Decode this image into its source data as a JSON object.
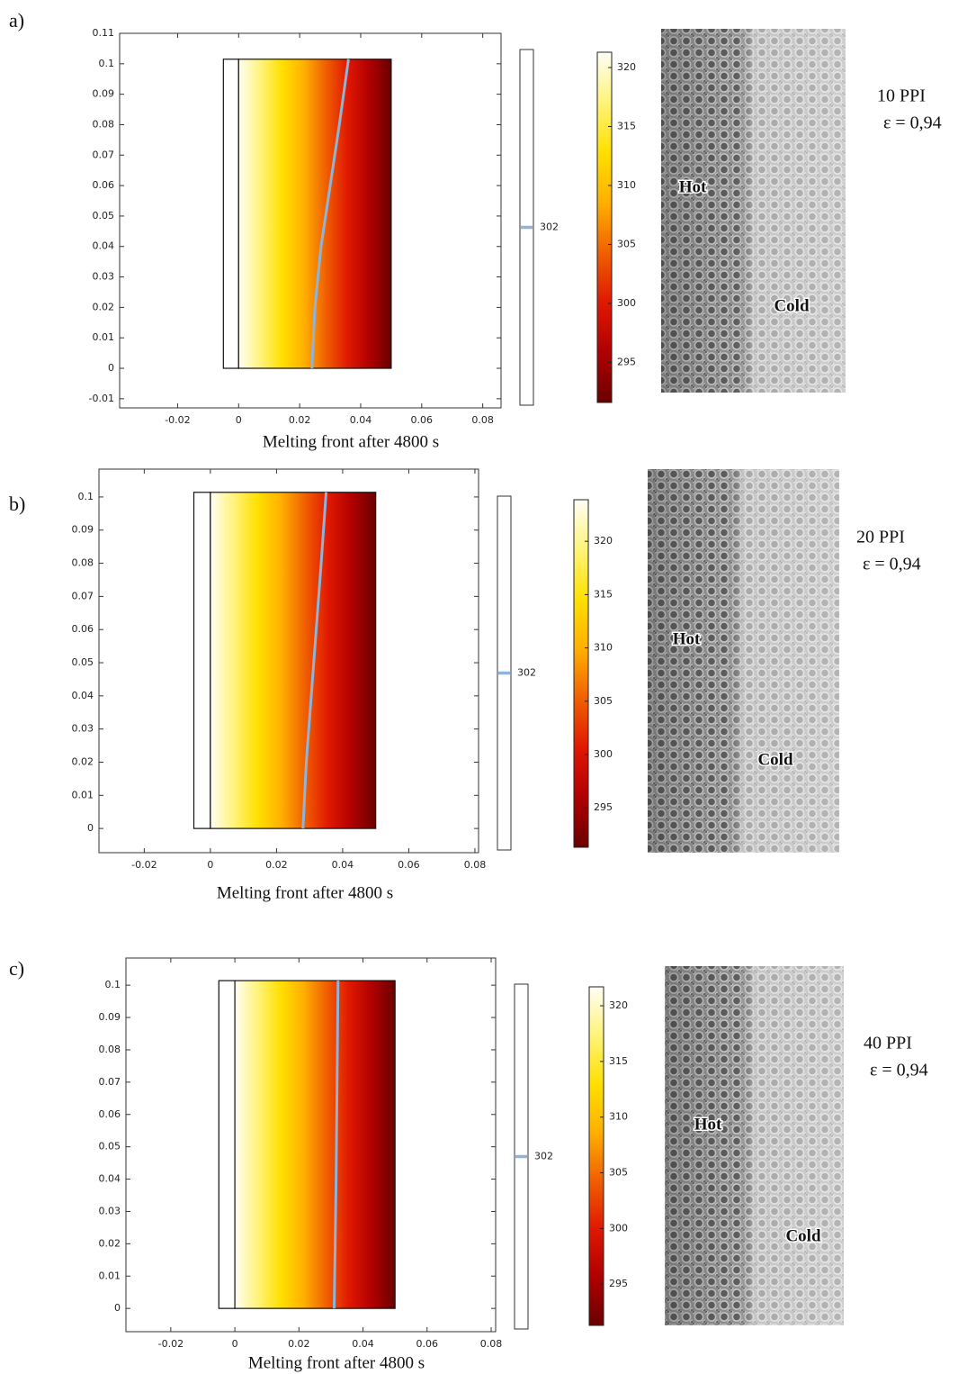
{
  "chart_data": [
    {
      "type": "contour",
      "label": "a)",
      "xlabel": "Melting front after 4800 s",
      "xlim": [
        -0.039,
        0.086
      ],
      "ylim": [
        -0.013,
        0.11
      ],
      "xticks": [
        -0.02,
        0,
        0.02,
        0.04,
        0.06,
        0.08
      ],
      "yticks": [
        -0.01,
        0,
        0.01,
        0.02,
        0.03,
        0.04,
        0.05,
        0.06,
        0.07,
        0.08,
        0.09,
        0.1,
        0.11
      ],
      "domain_x": [
        -0.005,
        0,
        0.05
      ],
      "domain_y": [
        0,
        0.1015
      ],
      "front": {
        "color": "#8fb3d9",
        "x": [
          0.024,
          0.025,
          0.027,
          0.03,
          0.033,
          0.036
        ],
        "y": [
          0,
          0.02,
          0.04,
          0.06,
          0.08,
          0.1015
        ]
      },
      "contour_level": 302,
      "clim": [
        291.6,
        321.3
      ],
      "cticks": [
        295,
        300,
        305,
        310,
        315,
        320
      ],
      "colormap": [
        "#fffef5",
        "#fff37a",
        "#ffe000",
        "#ffb000",
        "#f06000",
        "#e01800",
        "#b00000",
        "#6a0000"
      ],
      "photo_labels": [
        "Hot",
        "Cold"
      ],
      "annotation": [
        "10 PPI",
        "ε = 0,94"
      ]
    },
    {
      "type": "contour",
      "label": "b)",
      "xlabel": "Melting front after 4800 s",
      "xlim": [
        -0.0337,
        0.0811
      ],
      "ylim": [
        -0.0073,
        0.1084
      ],
      "xticks": [
        -0.02,
        0,
        0.02,
        0.04,
        0.06,
        0.08
      ],
      "yticks": [
        0,
        0.01,
        0.02,
        0.03,
        0.04,
        0.05,
        0.06,
        0.07,
        0.08,
        0.09,
        0.1
      ],
      "domain_x": [
        -0.005,
        0,
        0.05
      ],
      "domain_y": [
        0,
        0.1014
      ],
      "front": {
        "color": "#8fb3d9",
        "x": [
          0.028,
          0.029,
          0.0305,
          0.032,
          0.0335,
          0.035
        ],
        "y": [
          0,
          0.02,
          0.04,
          0.06,
          0.08,
          0.1014
        ]
      },
      "contour_level": 302,
      "clim": [
        291.3,
        323.9
      ],
      "cticks": [
        295,
        300,
        305,
        310,
        315,
        320
      ],
      "colormap": [
        "#fffef5",
        "#fff37a",
        "#ffe000",
        "#ffb000",
        "#f06000",
        "#e01800",
        "#b00000",
        "#6a0000"
      ],
      "photo_labels": [
        "Hot",
        "Cold"
      ],
      "annotation": [
        "20 PPI",
        "ε = 0,94"
      ]
    },
    {
      "type": "contour",
      "label": "c)",
      "xlabel": "Melting front after 4800 s",
      "xlim": [
        -0.034,
        0.0814
      ],
      "ylim": [
        -0.0072,
        0.1084
      ],
      "xticks": [
        -0.02,
        0,
        0.02,
        0.04,
        0.06,
        0.08
      ],
      "yticks": [
        0,
        0.01,
        0.02,
        0.03,
        0.04,
        0.05,
        0.06,
        0.07,
        0.08,
        0.09,
        0.1
      ],
      "domain_x": [
        -0.005,
        0,
        0.05
      ],
      "domain_y": [
        0,
        0.1014
      ],
      "front": {
        "color": "#8fb3d9",
        "x": [
          0.031,
          0.0313,
          0.0316,
          0.0318,
          0.032,
          0.0322
        ],
        "y": [
          0,
          0.02,
          0.04,
          0.06,
          0.08,
          0.1014
        ]
      },
      "contour_level": 302,
      "clim": [
        291.3,
        321.7
      ],
      "cticks": [
        295,
        300,
        305,
        310,
        315,
        320
      ],
      "colormap": [
        "#fffef5",
        "#fff37a",
        "#ffe000",
        "#ffb000",
        "#f06000",
        "#e01800",
        "#b00000",
        "#6a0000"
      ],
      "photo_labels": [
        "Hot",
        "Cold"
      ],
      "annotation": [
        "40 PPI",
        "ε = 0,94"
      ]
    }
  ]
}
